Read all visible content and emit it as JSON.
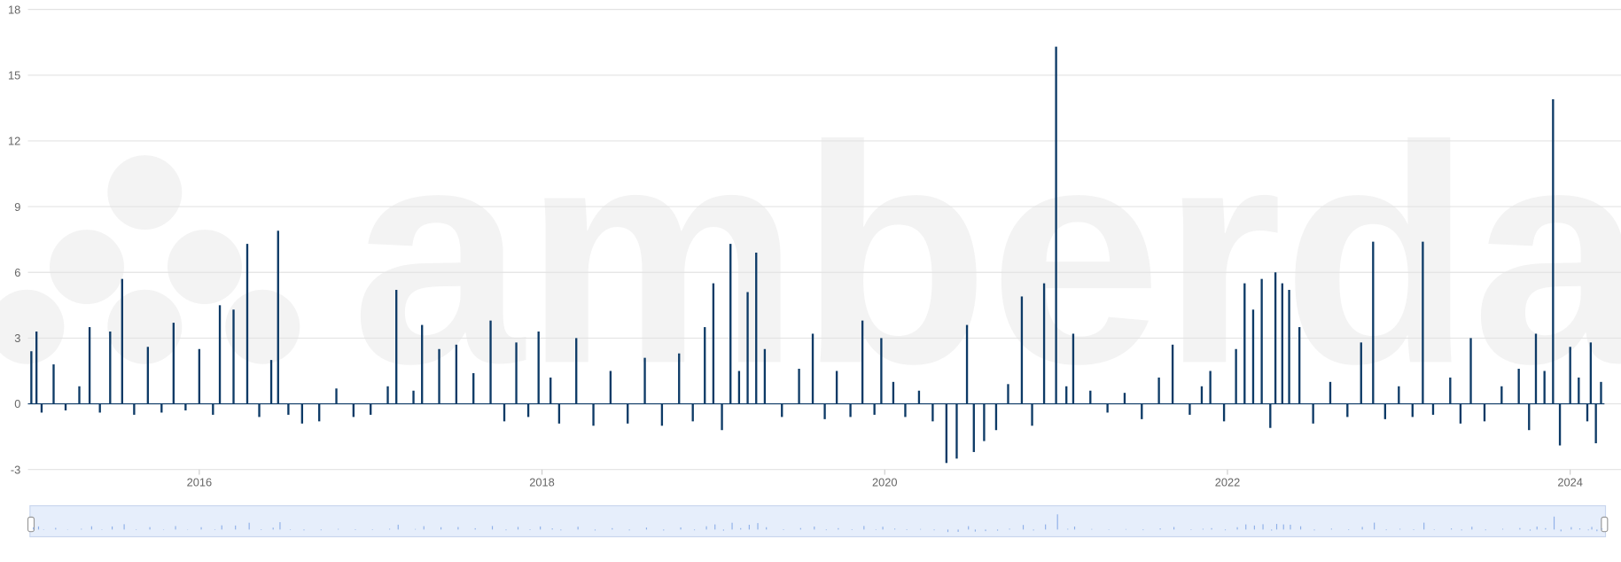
{
  "chart_data": {
    "type": "bar",
    "watermark": "amberdata",
    "color": "#0d3a66",
    "x": [
      2015.02,
      2015.05,
      2015.08,
      2015.15,
      2015.22,
      2015.3,
      2015.36,
      2015.42,
      2015.48,
      2015.55,
      2015.62,
      2015.7,
      2015.78,
      2015.85,
      2015.92,
      2016.0,
      2016.08,
      2016.12,
      2016.2,
      2016.28,
      2016.35,
      2016.42,
      2016.46,
      2016.52,
      2016.6,
      2016.7,
      2016.8,
      2016.9,
      2017.0,
      2017.1,
      2017.15,
      2017.25,
      2017.3,
      2017.4,
      2017.5,
      2017.6,
      2017.7,
      2017.78,
      2017.85,
      2017.92,
      2017.98,
      2018.05,
      2018.1,
      2018.2,
      2018.3,
      2018.4,
      2018.5,
      2018.6,
      2018.7,
      2018.8,
      2018.88,
      2018.95,
      2019.0,
      2019.05,
      2019.1,
      2019.15,
      2019.2,
      2019.25,
      2019.3,
      2019.4,
      2019.5,
      2019.58,
      2019.65,
      2019.72,
      2019.8,
      2019.87,
      2019.94,
      2019.98,
      2020.05,
      2020.12,
      2020.2,
      2020.28,
      2020.36,
      2020.42,
      2020.48,
      2020.52,
      2020.58,
      2020.65,
      2020.72,
      2020.8,
      2020.86,
      2020.93,
      2021.0,
      2021.06,
      2021.1,
      2021.2,
      2021.3,
      2021.4,
      2021.5,
      2021.6,
      2021.68,
      2021.78,
      2021.85,
      2021.9,
      2021.98,
      2022.05,
      2022.1,
      2022.15,
      2022.2,
      2022.25,
      2022.28,
      2022.32,
      2022.36,
      2022.42,
      2022.5,
      2022.6,
      2022.7,
      2022.78,
      2022.85,
      2022.92,
      2023.0,
      2023.08,
      2023.14,
      2023.2,
      2023.3,
      2023.36,
      2023.42,
      2023.5,
      2023.6,
      2023.7,
      2023.76,
      2023.8,
      2023.85,
      2023.9,
      2023.94,
      2024.0,
      2024.05,
      2024.1,
      2024.12,
      2024.15,
      2024.18
    ],
    "values": [
      2.4,
      3.3,
      -0.4,
      1.8,
      -0.3,
      0.8,
      3.5,
      -0.4,
      3.3,
      5.7,
      -0.5,
      2.6,
      -0.4,
      3.7,
      -0.3,
      2.5,
      -0.5,
      4.5,
      4.3,
      7.3,
      -0.6,
      2.0,
      7.9,
      -0.5,
      -0.9,
      -0.8,
      0.7,
      -0.6,
      -0.5,
      0.8,
      5.2,
      0.6,
      3.6,
      2.5,
      2.7,
      1.4,
      3.8,
      -0.8,
      2.8,
      -0.6,
      3.3,
      1.2,
      -0.9,
      3.0,
      -1.0,
      1.5,
      -0.9,
      2.1,
      -1.0,
      2.3,
      -0.8,
      3.5,
      5.5,
      -1.2,
      7.3,
      1.5,
      5.1,
      6.9,
      2.5,
      -0.6,
      1.6,
      3.2,
      -0.7,
      1.5,
      -0.6,
      3.8,
      -0.5,
      3.0,
      1.0,
      -0.6,
      0.6,
      -0.8,
      -2.7,
      -2.5,
      3.6,
      -2.2,
      -1.7,
      -1.2,
      0.9,
      4.9,
      -1.0,
      5.5,
      16.3,
      0.8,
      3.2,
      0.6,
      -0.4,
      0.5,
      -0.7,
      1.2,
      2.7,
      -0.5,
      0.8,
      1.5,
      -0.8,
      2.5,
      5.5,
      4.3,
      5.7,
      -1.1,
      6.0,
      5.5,
      5.2,
      3.5,
      -0.9,
      1.0,
      -0.6,
      2.8,
      7.4,
      -0.7,
      0.8,
      -0.6,
      7.4,
      -0.5,
      1.2,
      -0.9,
      3.0,
      -0.8,
      0.8,
      1.6,
      -1.2,
      3.2,
      1.5,
      13.9,
      -1.9,
      2.6,
      1.2,
      -0.8,
      2.8,
      -1.8,
      1.0
    ],
    "xlim": [
      2015.0,
      2024.2
    ],
    "xticks": [
      2016,
      2018,
      2020,
      2022,
      2024
    ],
    "ylim": [
      -3,
      18
    ],
    "yticks": [
      -3,
      0,
      3,
      6,
      9,
      12,
      15,
      18
    ],
    "grid": true
  }
}
